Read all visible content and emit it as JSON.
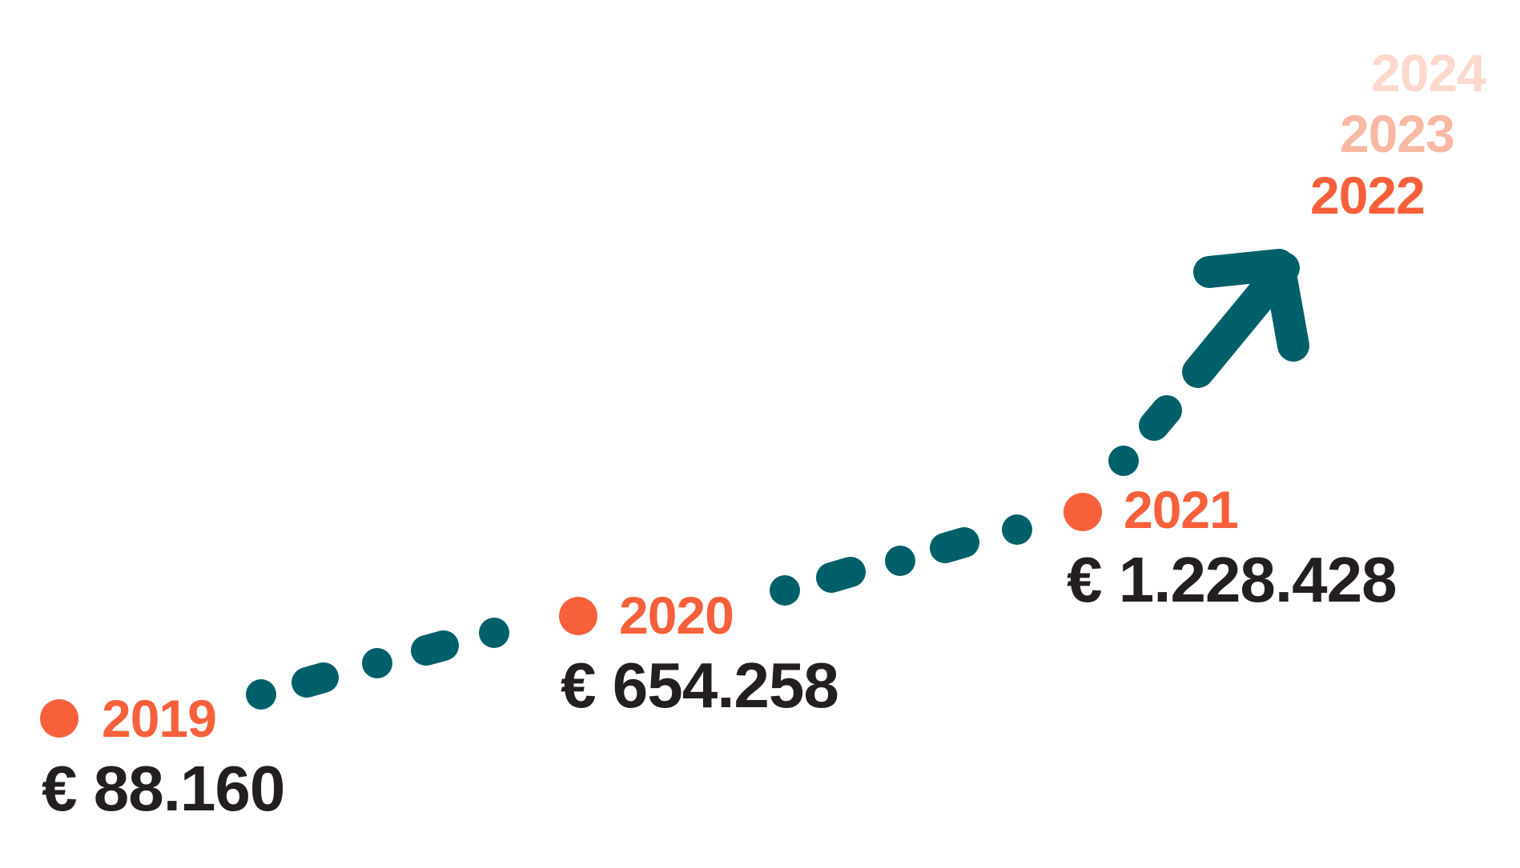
{
  "colors": {
    "accent": "#f7603a",
    "path": "#00606a",
    "text": "#231f20",
    "future_1": "#f8b8a4",
    "future_2": "#fcd8cd",
    "background": "#ffffff"
  },
  "milestones": [
    {
      "year": "2019",
      "amount": "€ 88.160"
    },
    {
      "year": "2020",
      "amount": "€ 654.258"
    },
    {
      "year": "2021",
      "amount": "€ 1.228.428"
    }
  ],
  "future_years": [
    "2022",
    "2023",
    "2024"
  ],
  "arrow_icon": "trend-up-arrow-icon"
}
